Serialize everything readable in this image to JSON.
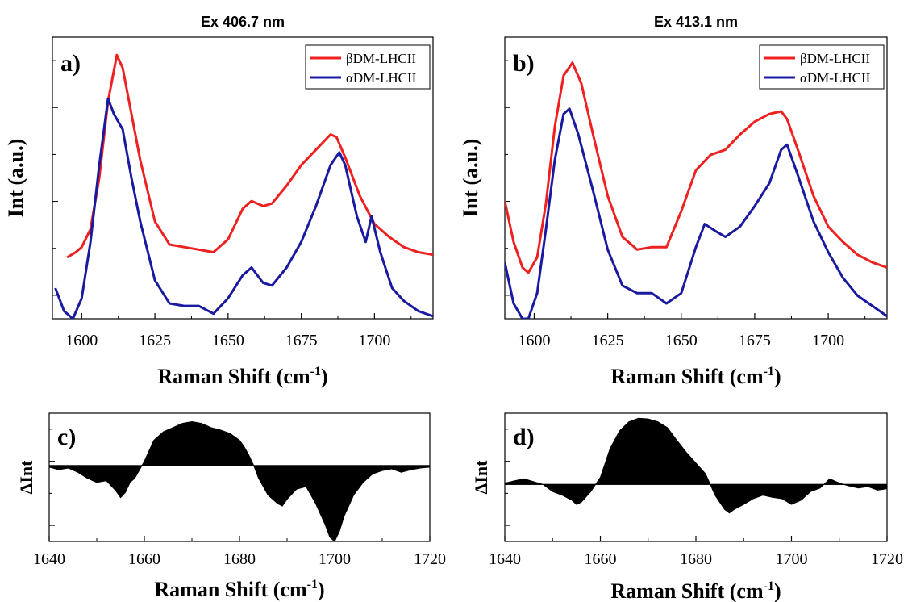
{
  "chart_data": [
    {
      "id": "a",
      "type": "line",
      "title": "Ex 406.7 nm",
      "panel_label": "a)",
      "xlabel": "Raman Shift (cm",
      "xlabel_sup": "-1",
      "xlabel_close": ")",
      "ylabel": "Int (a.u.)",
      "xlim": [
        1590,
        1720
      ],
      "ylim": [
        0,
        1.1
      ],
      "xticks": [
        "1600",
        "1625",
        "1650",
        "1675",
        "1700"
      ],
      "legend": "top-right",
      "series": [
        {
          "name": "βDM-LHCII",
          "color": "#ee2020",
          "x": [
            1595,
            1598,
            1600,
            1603,
            1606,
            1609,
            1612,
            1614,
            1617,
            1620,
            1625,
            1630,
            1635,
            1640,
            1645,
            1650,
            1655,
            1658,
            1662,
            1665,
            1670,
            1675,
            1680,
            1685,
            1687,
            1690,
            1695,
            1700,
            1705,
            1710,
            1715,
            1720
          ],
          "y": [
            0.24,
            0.26,
            0.28,
            0.35,
            0.55,
            0.85,
            1.03,
            0.98,
            0.8,
            0.62,
            0.38,
            0.29,
            0.28,
            0.27,
            0.26,
            0.31,
            0.43,
            0.46,
            0.44,
            0.45,
            0.52,
            0.6,
            0.66,
            0.72,
            0.71,
            0.63,
            0.48,
            0.37,
            0.32,
            0.28,
            0.26,
            0.25
          ]
        },
        {
          "name": "αDM-LHCII",
          "color": "#1a1aa0",
          "x": [
            1591,
            1594,
            1597,
            1600,
            1603,
            1606,
            1609,
            1611,
            1614,
            1617,
            1620,
            1625,
            1630,
            1635,
            1640,
            1645,
            1650,
            1655,
            1658,
            1662,
            1665,
            1670,
            1675,
            1680,
            1685,
            1688,
            1690,
            1694,
            1697,
            1699,
            1702,
            1706,
            1710,
            1715,
            1720
          ],
          "y": [
            0.12,
            0.03,
            0.0,
            0.08,
            0.3,
            0.6,
            0.86,
            0.8,
            0.74,
            0.55,
            0.38,
            0.15,
            0.06,
            0.05,
            0.05,
            0.02,
            0.08,
            0.17,
            0.2,
            0.14,
            0.13,
            0.2,
            0.3,
            0.44,
            0.6,
            0.65,
            0.6,
            0.4,
            0.3,
            0.4,
            0.26,
            0.12,
            0.07,
            0.03,
            0.01
          ]
        }
      ]
    },
    {
      "id": "b",
      "type": "line",
      "title": "Ex 413.1 nm",
      "panel_label": "b)",
      "xlabel": "Raman Shift (cm",
      "xlabel_sup": "-1",
      "xlabel_close": ")",
      "ylabel": "Int (a.u.)",
      "xlim": [
        1590,
        1720
      ],
      "ylim": [
        0,
        1.1
      ],
      "xticks": [
        "1600",
        "1625",
        "1650",
        "1675",
        "1700"
      ],
      "legend": "top-right",
      "series": [
        {
          "name": "βDM-LHCII",
          "color": "#ee2020",
          "x": [
            1590,
            1593,
            1596,
            1598,
            1601,
            1604,
            1607,
            1610,
            1613,
            1616,
            1620,
            1625,
            1630,
            1635,
            1640,
            1645,
            1650,
            1655,
            1660,
            1665,
            1670,
            1675,
            1680,
            1684,
            1686,
            1690,
            1695,
            1700,
            1705,
            1710,
            1715,
            1720
          ],
          "y": [
            0.46,
            0.3,
            0.2,
            0.18,
            0.24,
            0.45,
            0.75,
            0.95,
            1.0,
            0.92,
            0.72,
            0.48,
            0.32,
            0.27,
            0.28,
            0.28,
            0.42,
            0.58,
            0.64,
            0.66,
            0.72,
            0.77,
            0.8,
            0.81,
            0.78,
            0.65,
            0.48,
            0.36,
            0.3,
            0.25,
            0.22,
            0.2
          ]
        },
        {
          "name": "αDM-LHCII",
          "color": "#1a1aa0",
          "x": [
            1590,
            1593,
            1596,
            1598,
            1601,
            1604,
            1607,
            1610,
            1612,
            1615,
            1620,
            1625,
            1630,
            1635,
            1640,
            1645,
            1650,
            1655,
            1658,
            1662,
            1665,
            1670,
            1675,
            1680,
            1684,
            1686,
            1690,
            1695,
            1700,
            1705,
            1710,
            1715,
            1720
          ],
          "y": [
            0.22,
            0.06,
            0.0,
            0.0,
            0.1,
            0.35,
            0.62,
            0.8,
            0.82,
            0.72,
            0.5,
            0.27,
            0.13,
            0.1,
            0.1,
            0.06,
            0.1,
            0.28,
            0.37,
            0.34,
            0.32,
            0.36,
            0.44,
            0.53,
            0.66,
            0.68,
            0.55,
            0.38,
            0.26,
            0.16,
            0.09,
            0.05,
            0.01
          ]
        }
      ]
    },
    {
      "id": "c",
      "type": "area",
      "panel_label": "c)",
      "xlabel": "Raman Shift (cm",
      "xlabel_sup": "-1",
      "xlabel_close": ")",
      "ylabel": "ΔInt",
      "xlim": [
        1640,
        1720
      ],
      "ylim": [
        -0.9,
        0.62
      ],
      "xticks": [
        "1640",
        "1660",
        "1680",
        "1700",
        "1720"
      ],
      "fill": "#000000",
      "x": [
        1640,
        1642,
        1644,
        1646,
        1648,
        1650,
        1652,
        1654,
        1655,
        1656,
        1657,
        1658,
        1659,
        1660,
        1662,
        1664,
        1666,
        1668,
        1670,
        1672,
        1674,
        1676,
        1678,
        1680,
        1681,
        1682,
        1683,
        1684,
        1686,
        1688,
        1689,
        1690,
        1692,
        1694,
        1696,
        1698,
        1699,
        1700,
        1701,
        1702,
        1704,
        1706,
        1708,
        1710,
        1712,
        1714,
        1716,
        1718,
        1720
      ],
      "y": [
        -0.02,
        -0.05,
        -0.03,
        -0.08,
        -0.15,
        -0.2,
        -0.18,
        -0.3,
        -0.38,
        -0.32,
        -0.2,
        -0.15,
        -0.05,
        0.05,
        0.3,
        0.4,
        0.45,
        0.5,
        0.52,
        0.5,
        0.45,
        0.42,
        0.38,
        0.3,
        0.22,
        0.12,
        0.0,
        -0.15,
        -0.35,
        -0.45,
        -0.48,
        -0.4,
        -0.28,
        -0.25,
        -0.45,
        -0.7,
        -0.85,
        -0.9,
        -0.78,
        -0.6,
        -0.35,
        -0.2,
        -0.1,
        -0.06,
        -0.04,
        -0.08,
        -0.05,
        -0.03,
        -0.02
      ]
    },
    {
      "id": "d",
      "type": "area",
      "panel_label": "d)",
      "xlabel": "Raman Shift (cm",
      "xlabel_sup": "-1",
      "xlabel_close": ")",
      "ylabel": "ΔInt",
      "xlim": [
        1640,
        1720
      ],
      "ylim": [
        -0.8,
        1.0
      ],
      "xticks": [
        "1640",
        "1660",
        "1680",
        "1700",
        "1720"
      ],
      "fill": "#000000",
      "x": [
        1640,
        1642,
        1644,
        1646,
        1648,
        1650,
        1652,
        1654,
        1655,
        1656,
        1658,
        1660,
        1662,
        1664,
        1666,
        1668,
        1670,
        1672,
        1674,
        1676,
        1678,
        1680,
        1682,
        1683,
        1684,
        1686,
        1687,
        1688,
        1690,
        1692,
        1694,
        1696,
        1698,
        1700,
        1702,
        1704,
        1706,
        1708,
        1710,
        1712,
        1714,
        1716,
        1718,
        1720
      ],
      "y": [
        0.02,
        0.05,
        0.08,
        0.04,
        0.0,
        -0.1,
        -0.15,
        -0.22,
        -0.28,
        -0.25,
        -0.1,
        0.1,
        0.5,
        0.75,
        0.88,
        0.93,
        0.92,
        0.88,
        0.8,
        0.62,
        0.45,
        0.3,
        0.15,
        0.0,
        -0.15,
        -0.35,
        -0.4,
        -0.35,
        -0.28,
        -0.2,
        -0.15,
        -0.18,
        -0.2,
        -0.28,
        -0.22,
        -0.1,
        -0.05,
        0.08,
        0.02,
        -0.02,
        -0.05,
        -0.03,
        -0.08,
        -0.06
      ]
    }
  ]
}
